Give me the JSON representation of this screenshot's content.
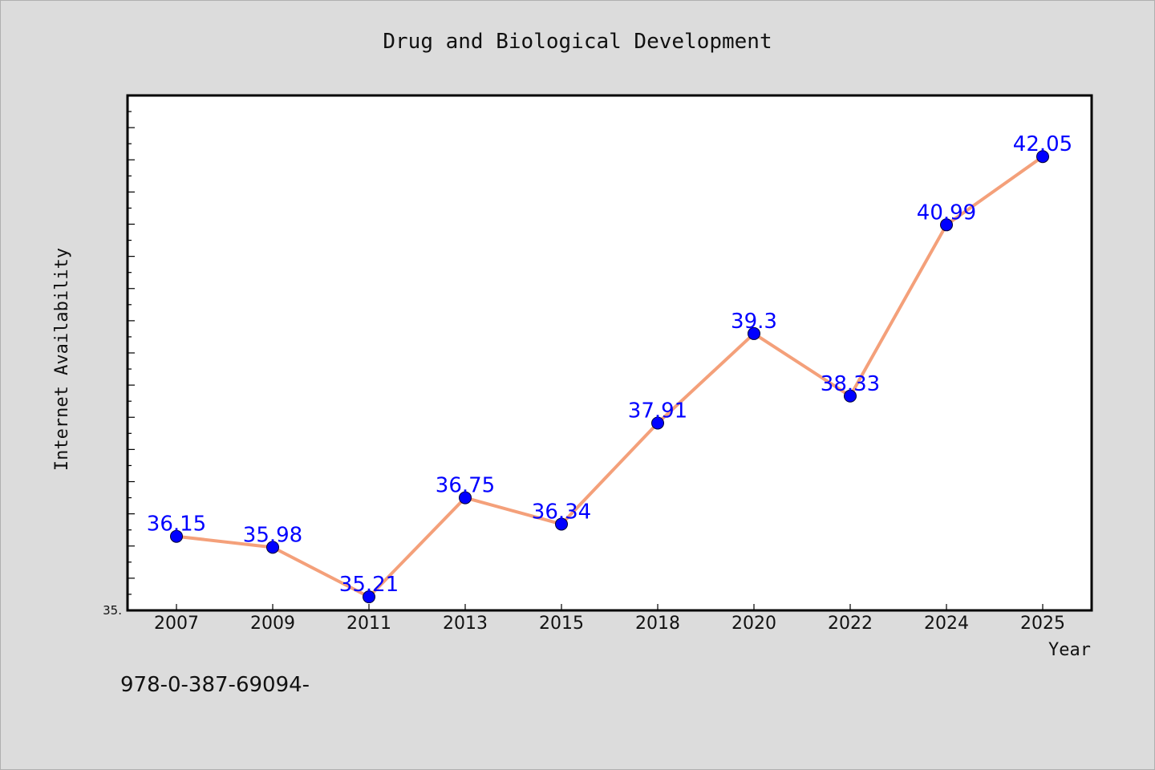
{
  "chart_data": {
    "type": "line",
    "title": "Drug and Biological Development",
    "xlabel": "Year",
    "ylabel": "Internet Availability",
    "categories": [
      "2007",
      "2009",
      "2011",
      "2013",
      "2015",
      "2018",
      "2020",
      "2022",
      "2024",
      "2025"
    ],
    "series": [
      {
        "values": [
          36.15,
          35.98,
          35.21,
          36.75,
          36.34,
          37.91,
          39.3,
          38.33,
          40.99,
          42.05
        ]
      }
    ],
    "data_labels": [
      "36.15",
      "35.98",
      "35.21",
      "36.75",
      "36.34",
      "37.91",
      "39.3",
      "38.33",
      "40.99",
      "42.05"
    ],
    "ylim": [
      35.0,
      43.0
    ],
    "y_tick_label": "35.",
    "grid": false,
    "colors": {
      "line": "#f4a07a",
      "marker": "#0000ff",
      "data_label": "#0000ff",
      "background": "#dcdcdc",
      "plot_background": "#ffffff"
    }
  },
  "footer": {
    "isbn_text": "978-0-387-69094-"
  }
}
